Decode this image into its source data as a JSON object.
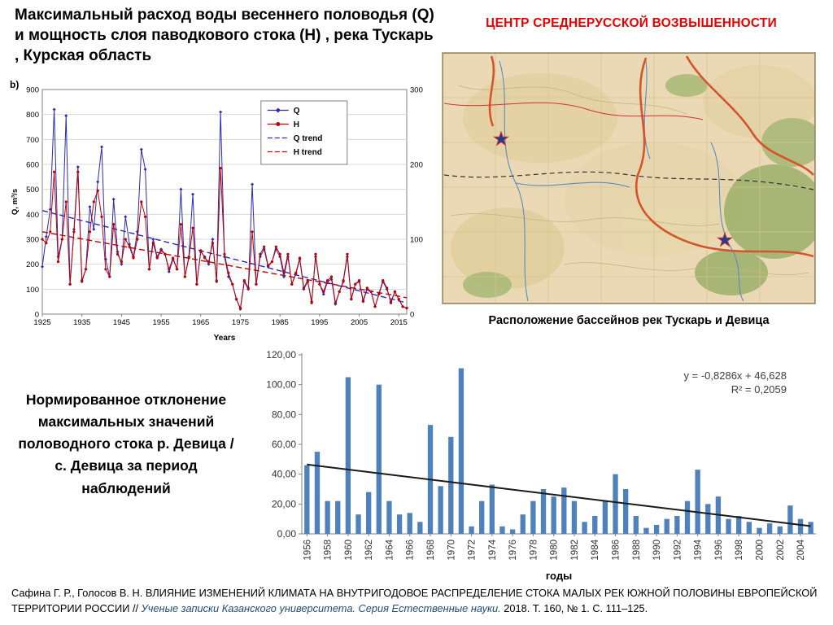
{
  "slide": {
    "title_left": "Максимальный расход воды весеннего половодья (Q) и мощность слоя паводкового стока (H) , река Тускарь , Курская область",
    "heading_right": "ЦЕНТР СРЕДНЕРУССКОЙ ВОЗВЫШЕННОСТИ",
    "map_caption": "Расположение бассейнов  рек Тускарь и Девица",
    "left_note": "Нормированное отклонение максимальных значений половодного стока  р. Девица / с. Девица за период наблюдений",
    "citation": {
      "lead": "Сафина Г. Р., Голосов В. Н. ВЛИЯНИЕ ИЗМЕНЕНИЙ КЛИМАТА НА ВНУТРИГОДОВОЕ РАСПРЕДЕЛЕНИЕ СТОКА МАЛЫХ РЕК ЮЖНОЙ ПОЛОВИНЫ ЕВРОПЕЙСКОЙ ТЕРРИТОРИИ РОССИИ // ",
      "journal": "Ученые записки Казанского университета. Серия Естественные науки.",
      "tail": "  2018. Т. 160, № 1. С. 111–125."
    },
    "colors": {
      "accent_red": "#e60000",
      "citation_italic_blue": "#1f4e79",
      "q_blue": "#2b2bb4",
      "h_red": "#c00000",
      "bar_blue": "#4f81bd"
    }
  },
  "chart_data": [
    {
      "type": "line",
      "panel_label": "b)",
      "xlabel": "Years",
      "ylabel_left": "Q, m³/s",
      "x_range": [
        1925,
        2017
      ],
      "x_ticks": [
        1925,
        1935,
        1945,
        1955,
        1965,
        1975,
        1985,
        1995,
        2005,
        2015
      ],
      "ylim_left": [
        0,
        900
      ],
      "ylim_right": [
        0,
        300
      ],
      "yticks_left": [
        0,
        100,
        200,
        300,
        400,
        500,
        600,
        700,
        800,
        900
      ],
      "yticks_right": [
        0,
        100,
        200,
        300
      ],
      "grid": "horizontal",
      "legend_position": "upper-right-inside",
      "legend": [
        {
          "label": "Q",
          "color": "#2b2bb4",
          "dashed": false,
          "marker": "diamond"
        },
        {
          "label": "H",
          "color": "#c00000",
          "dashed": false,
          "marker": "circle"
        },
        {
          "label": "Q trend",
          "color": "#2b2bb4",
          "dashed": true,
          "marker": "none"
        },
        {
          "label": "H trend",
          "color": "#c00000",
          "dashed": true,
          "marker": "none"
        }
      ],
      "series": [
        {
          "name": "Q",
          "axis": "left",
          "color": "#2b2bb4",
          "marker": "diamond",
          "values": [
            190,
            310,
            420,
            820,
            230,
            300,
            795,
            120,
            340,
            590,
            130,
            180,
            430,
            340,
            530,
            670,
            220,
            150,
            460,
            250,
            200,
            390,
            280,
            230,
            330,
            660,
            580,
            180,
            300,
            230,
            260,
            240,
            170,
            220,
            180,
            500,
            150,
            230,
            480,
            120,
            250,
            230,
            200,
            300,
            130,
            810,
            230,
            150,
            120,
            60,
            20,
            130,
            100,
            520,
            120,
            230,
            260,
            190,
            210,
            260,
            230,
            150,
            230,
            120,
            160,
            220,
            100,
            130,
            50,
            230,
            120,
            80,
            130,
            140,
            40,
            90,
            130,
            230,
            60,
            120,
            130,
            50,
            100,
            90,
            30,
            80,
            130,
            100,
            50,
            90,
            60,
            30,
            25
          ]
        },
        {
          "name": "H",
          "axis": "right",
          "color": "#c00000",
          "marker": "circle",
          "values": [
            100,
            95,
            110,
            190,
            70,
            100,
            150,
            40,
            110,
            190,
            45,
            60,
            110,
            150,
            165,
            130,
            60,
            50,
            120,
            80,
            70,
            100,
            90,
            75,
            100,
            150,
            130,
            60,
            95,
            75,
            85,
            80,
            60,
            75,
            60,
            120,
            50,
            75,
            115,
            40,
            85,
            75,
            70,
            95,
            45,
            195,
            80,
            55,
            40,
            20,
            8,
            45,
            35,
            110,
            40,
            80,
            90,
            65,
            70,
            90,
            80,
            55,
            80,
            40,
            55,
            75,
            35,
            45,
            15,
            80,
            40,
            30,
            45,
            50,
            15,
            30,
            45,
            80,
            20,
            40,
            45,
            18,
            35,
            30,
            10,
            28,
            45,
            35,
            15,
            30,
            20,
            10,
            8
          ]
        }
      ],
      "trends": [
        {
          "name": "Q trend",
          "axis": "left",
          "color": "#2b2bb4",
          "start": 415,
          "end": 45
        },
        {
          "name": "H trend",
          "axis": "right",
          "color": "#c00000",
          "start": 110,
          "end": 22
        }
      ]
    },
    {
      "type": "bar",
      "xlabel": "годы",
      "ylim": [
        0,
        120
      ],
      "ytick_labels": [
        "0,00",
        "20,00",
        "40,00",
        "60,00",
        "80,00",
        "100,00",
        "120,00"
      ],
      "bar_color": "#4f81bd",
      "x_label_step": 2,
      "categories": [
        1956,
        1957,
        1958,
        1959,
        1960,
        1961,
        1962,
        1963,
        1964,
        1965,
        1966,
        1967,
        1968,
        1969,
        1970,
        1971,
        1972,
        1973,
        1974,
        1975,
        1976,
        1977,
        1978,
        1979,
        1980,
        1981,
        1982,
        1983,
        1984,
        1985,
        1986,
        1987,
        1988,
        1989,
        1990,
        1991,
        1992,
        1993,
        1994,
        1995,
        1996,
        1997,
        1998,
        1999,
        2000,
        2001,
        2002,
        2003,
        2004,
        2005
      ],
      "values": [
        46,
        55,
        22,
        22,
        105,
        13,
        28,
        100,
        22,
        13,
        14,
        8,
        73,
        32,
        65,
        111,
        5,
        22,
        33,
        5,
        3,
        13,
        22,
        30,
        25,
        31,
        22,
        8,
        12,
        22,
        40,
        30,
        12,
        4,
        6,
        10,
        12,
        22,
        43,
        20,
        25,
        10,
        12,
        8,
        4,
        7,
        5,
        19,
        10,
        8
      ],
      "trend": {
        "color": "#1a1a1a",
        "start": 46.5,
        "end": 5.2,
        "equation": "y = -0,8286x + 46,628",
        "r2": "R² = 0,2059"
      }
    }
  ]
}
